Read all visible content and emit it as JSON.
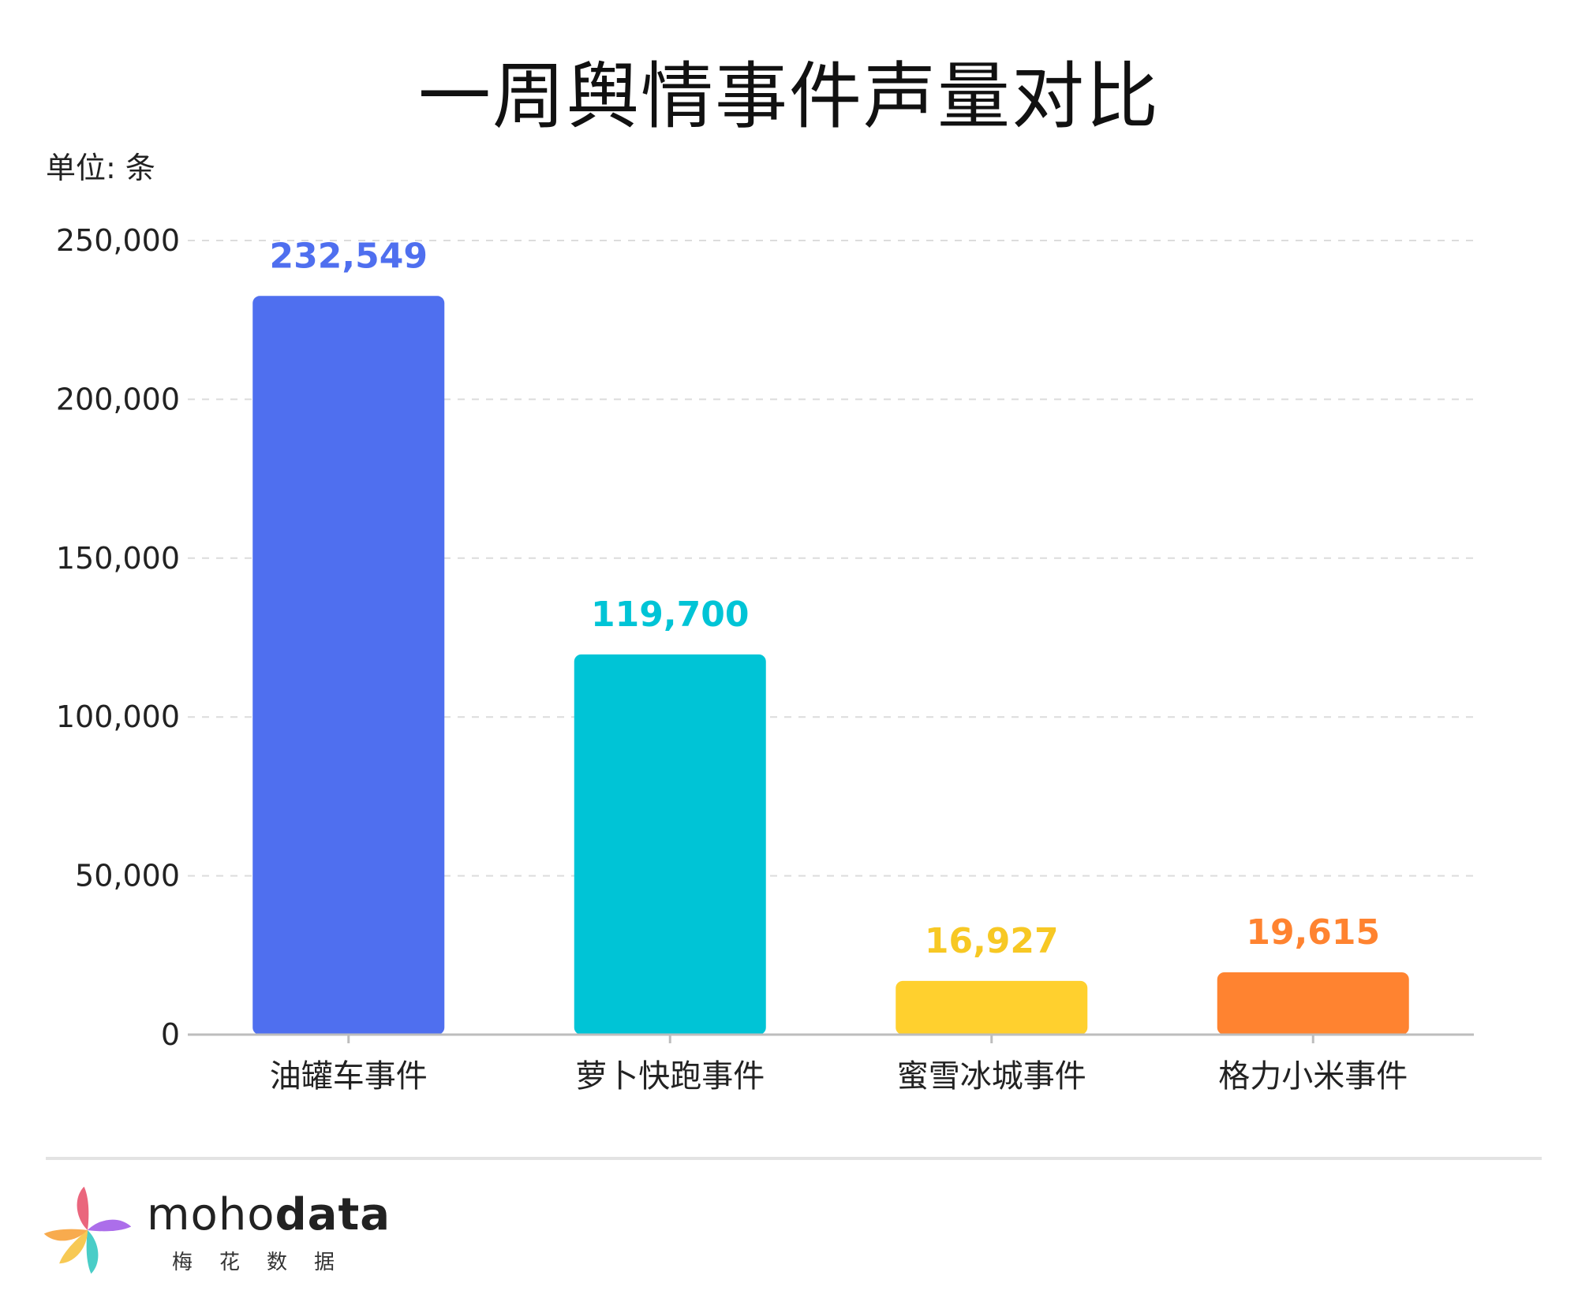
{
  "title": "一周舆情事件声量对比",
  "unit_label": "单位: 条",
  "chart_data": {
    "type": "bar",
    "title": "一周舆情事件声量对比",
    "ylabel": "单位: 条",
    "categories": [
      "油罐车事件",
      "萝卜快跑事件",
      "蜜雪冰城事件",
      "格力小米事件"
    ],
    "values": [
      232549,
      119700,
      16927,
      19615
    ],
    "value_labels": [
      "232,549",
      "119,700",
      "16,927",
      "19,615"
    ],
    "colors": [
      "#4f6fef",
      "#00c4d6",
      "#ffd02e",
      "#ff8330"
    ],
    "ylim": [
      0,
      250000
    ],
    "yticks": [
      0,
      50000,
      100000,
      150000,
      200000,
      250000
    ],
    "ytick_labels": [
      "0",
      "50,000",
      "100,000",
      "150,000",
      "200,000",
      "250,000"
    ],
    "grid": true
  },
  "brand": {
    "name_light": "moho",
    "name_bold": "data",
    "subtitle": "梅花数据",
    "logo_colors": [
      "#f7a23b",
      "#e8556f",
      "#a35ee8",
      "#35c8c1",
      "#f6c341"
    ]
  }
}
